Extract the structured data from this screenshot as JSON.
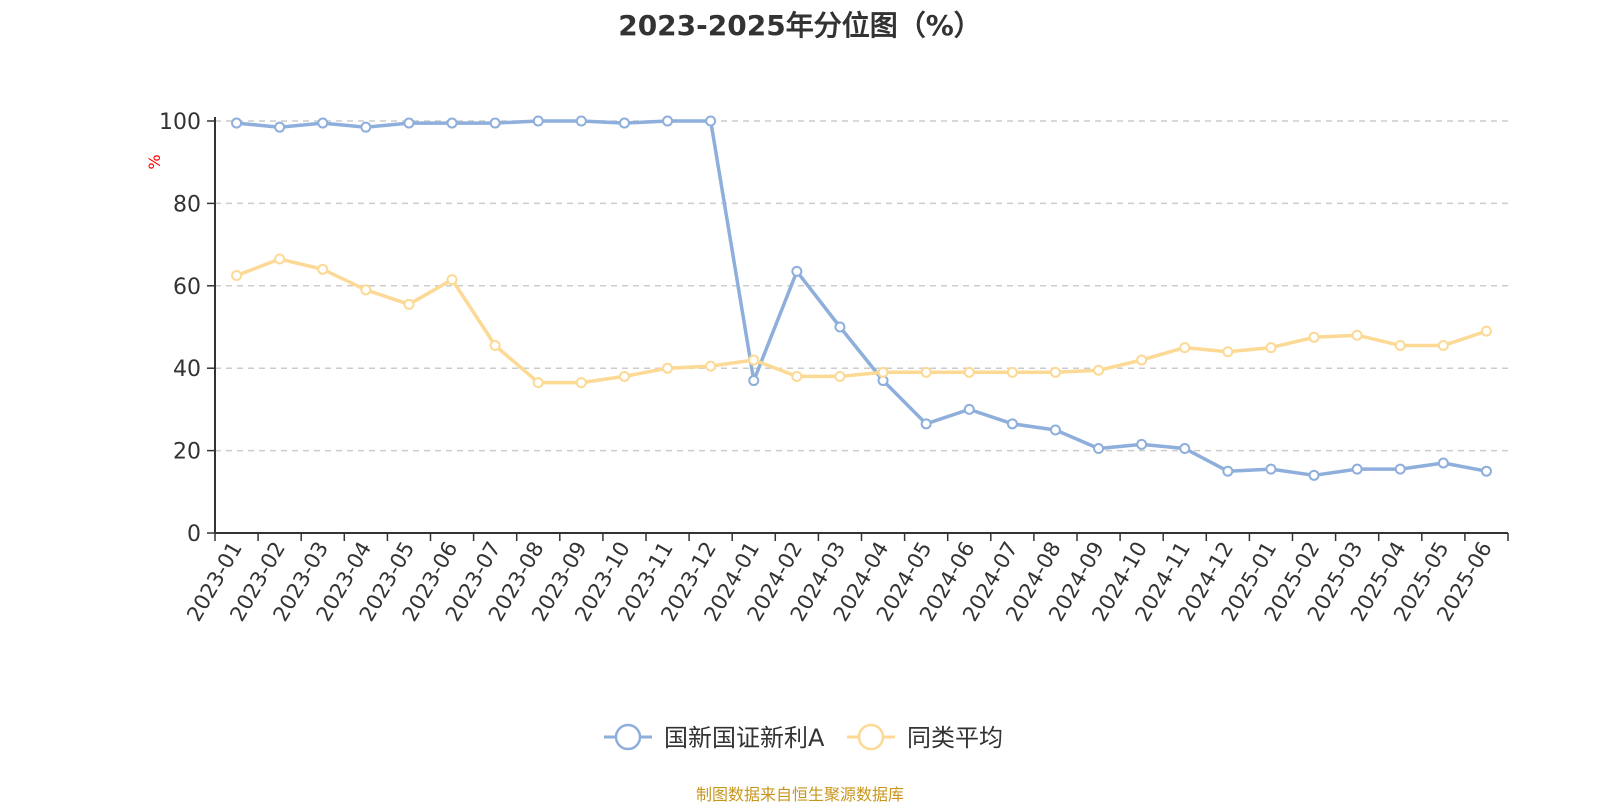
{
  "title": "2023-2025年分位图（%）",
  "source": "制图数据来自恒生聚源数据库",
  "chart_data": {
    "type": "line",
    "title": "2023-2025年分位图（%）",
    "xlabel": "",
    "ylabel": "%",
    "ylim": [
      0,
      100
    ],
    "yticks": [
      0,
      20,
      40,
      60,
      80,
      100
    ],
    "grid": true,
    "legend_position": "bottom",
    "categories": [
      "2023-01",
      "2023-02",
      "2023-03",
      "2023-04",
      "2023-05",
      "2023-06",
      "2023-07",
      "2023-08",
      "2023-09",
      "2023-10",
      "2023-11",
      "2023-12",
      "2024-01",
      "2024-02",
      "2024-03",
      "2024-04",
      "2024-05",
      "2024-06",
      "2024-07",
      "2024-08",
      "2024-09",
      "2024-10",
      "2024-11",
      "2024-12",
      "2025-01",
      "2025-02",
      "2025-03",
      "2025-04",
      "2025-05",
      "2025-06"
    ],
    "series": [
      {
        "name": "国新国证新利A",
        "color": "#8eaedb",
        "values": [
          99.5,
          98.5,
          99.5,
          98.5,
          99.5,
          99.5,
          99.5,
          100,
          100,
          99.5,
          100,
          100,
          37,
          63.5,
          50,
          37,
          26.5,
          30,
          26.5,
          25,
          20.5,
          21.5,
          20.5,
          15,
          15.5,
          14,
          15.5,
          15.5,
          17,
          15
        ]
      },
      {
        "name": "同类平均",
        "color": "#fcd994",
        "values": [
          62.5,
          66.5,
          64,
          59,
          55.5,
          61.5,
          45.5,
          36.5,
          36.5,
          38,
          40,
          40.5,
          42,
          38,
          38,
          39,
          39,
          39,
          39,
          39,
          39.5,
          42,
          45,
          44,
          45,
          47.5,
          48,
          45.5,
          45.5,
          49
        ]
      }
    ]
  }
}
